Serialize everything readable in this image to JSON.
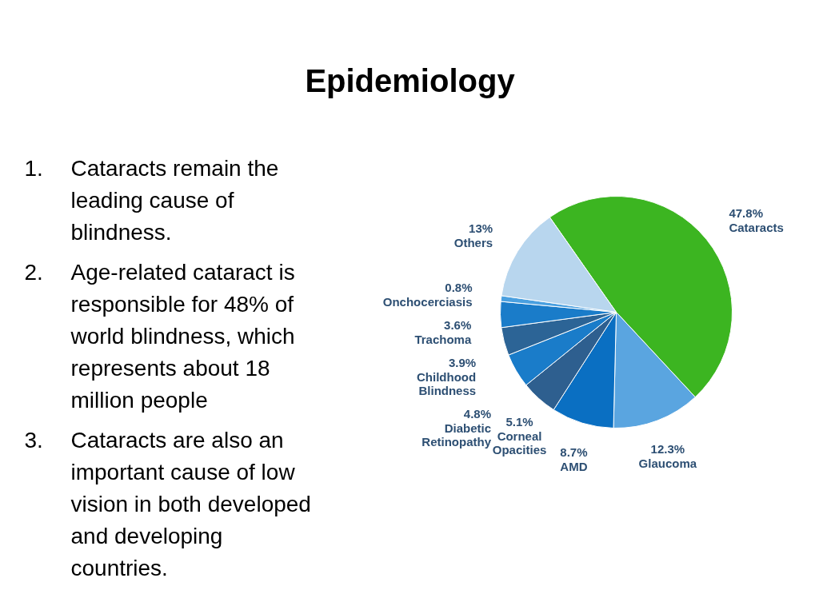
{
  "chart_data": {
    "type": "pie",
    "title": "Epidemiology",
    "categories": [
      "Cataracts",
      "Glaucoma",
      "AMD",
      "Corneal Opacities",
      "Diabetic Retinopathy",
      "Childhood Blindness",
      "Trachoma",
      "Onchocerciasis",
      "Others"
    ],
    "values": [
      47.8,
      12.3,
      8.7,
      5.1,
      4.8,
      3.9,
      3.6,
      0.8,
      13
    ],
    "value_labels": [
      "47.8%",
      "12.3%",
      "8.7%",
      "5.1%",
      "4.8%",
      "3.9%",
      "3.6%",
      "0.8%",
      "13%"
    ],
    "colors": [
      "#3cb521",
      "#5aa5e0",
      "#0a6fc2",
      "#2e5f8f",
      "#1a7cc9",
      "#2c6496",
      "#1a7cc9",
      "#4aa0e0",
      "#b8d6ee"
    ],
    "legend": false,
    "annotations": [
      "1. Cataracts remain the leading cause of blindness.",
      "2. Age-related cataract is responsible for 48% of world blindness, which represents about 18 million people",
      "3. Cataracts are also an important cause of low vision in both developed and developing countries."
    ]
  }
}
